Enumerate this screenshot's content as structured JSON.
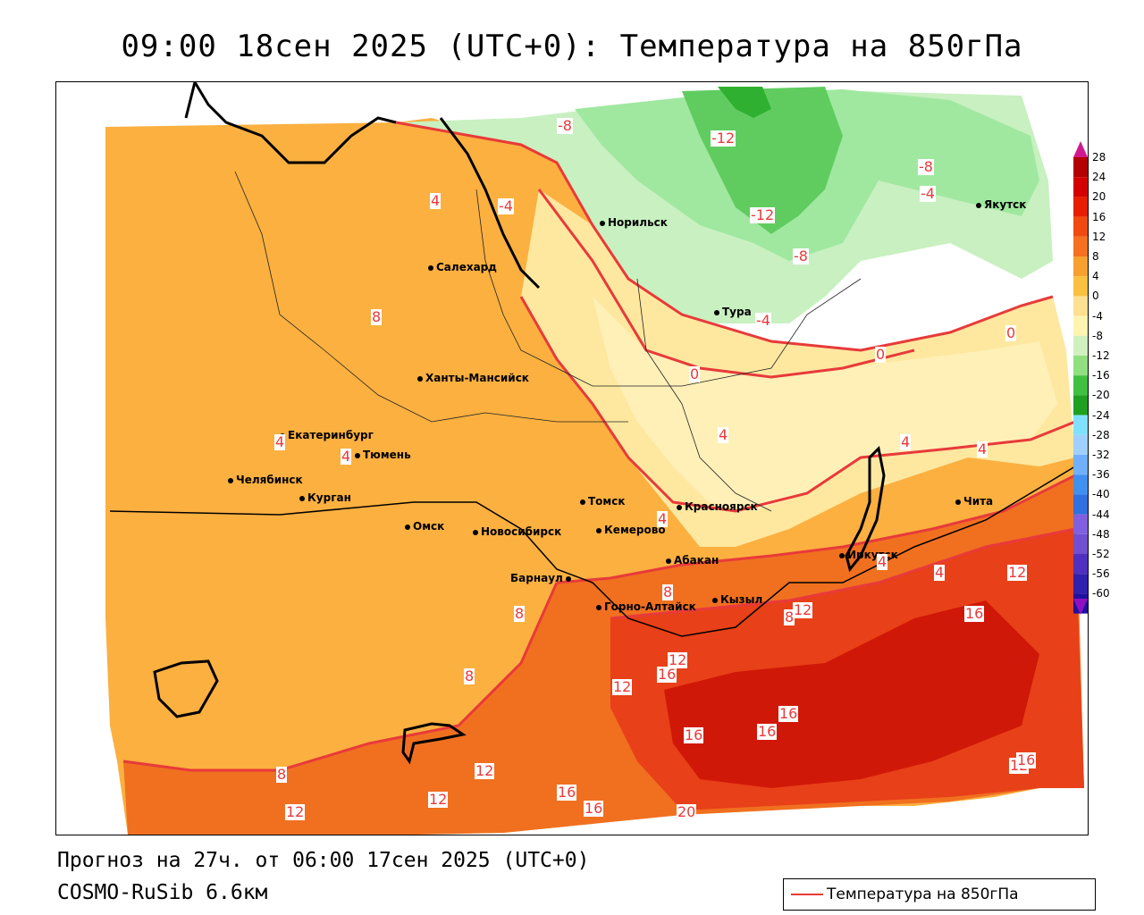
{
  "header": {
    "title": "09:00 18сен 2025 (UTC+0): Температура на 850гПа"
  },
  "footer": {
    "forecast": "Прогноз на 27ч. от 06:00 17сен 2025 (UTC+0)",
    "model": "COSMO-RuSib 6.6км"
  },
  "legend": {
    "label": "Температура на 850гПа",
    "color": "#e83a3a"
  },
  "colorbar": {
    "ticks": [
      "28",
      "24",
      "20",
      "16",
      "12",
      "8",
      "4",
      "0",
      "-4",
      "-8",
      "-12",
      "-16",
      "-20",
      "-24",
      "-28",
      "-32",
      "-36",
      "-40",
      "-44",
      "-48",
      "-52",
      "-56",
      "-60"
    ],
    "colors": [
      "#b40000",
      "#d40000",
      "#e81e00",
      "#f04a10",
      "#f57020",
      "#f7a030",
      "#fbc040",
      "#ffe090",
      "#fff4b0",
      "#d0f0c0",
      "#90e080",
      "#40c040",
      "#20a020",
      "#80e0ff",
      "#a0d0ff",
      "#70b0ff",
      "#4090f0",
      "#3070e0",
      "#8060e0",
      "#7050d0",
      "#5030c0",
      "#3020b0",
      "#2010a0"
    ],
    "top_color": "#d01890",
    "bottom_color": "#9010c0"
  },
  "cities": [
    {
      "name": "Норильск"
    },
    {
      "name": "Якутск"
    },
    {
      "name": "Салехард"
    },
    {
      "name": "Тура"
    },
    {
      "name": "Ханты-Мансийск"
    },
    {
      "name": "Екатеринбург"
    },
    {
      "name": "Тюмень"
    },
    {
      "name": "Челябинск"
    },
    {
      "name": "Курган"
    },
    {
      "name": "Омск"
    },
    {
      "name": "Томск"
    },
    {
      "name": "Красноярск"
    },
    {
      "name": "Новосибирск"
    },
    {
      "name": "Кемерово"
    },
    {
      "name": "Абакан"
    },
    {
      "name": "Иркутск"
    },
    {
      "name": "Чита"
    },
    {
      "name": "Барнаул"
    },
    {
      "name": "Горно-Алтайск"
    },
    {
      "name": "Кызыл"
    }
  ],
  "contour_labels": [
    "-8",
    "-12",
    "-8",
    "-4",
    "-12",
    "-8",
    "-4",
    "4",
    "-4",
    "8",
    "0",
    "0",
    "0",
    "4",
    "4",
    "4",
    "4",
    "4",
    "4",
    "4",
    "4",
    "8",
    "8",
    "12",
    "8",
    "12",
    "8",
    "12",
    "12",
    "16",
    "16",
    "12",
    "16",
    "16",
    "16",
    "8",
    "12",
    "12",
    "16",
    "12",
    "16",
    "20",
    "16"
  ]
}
